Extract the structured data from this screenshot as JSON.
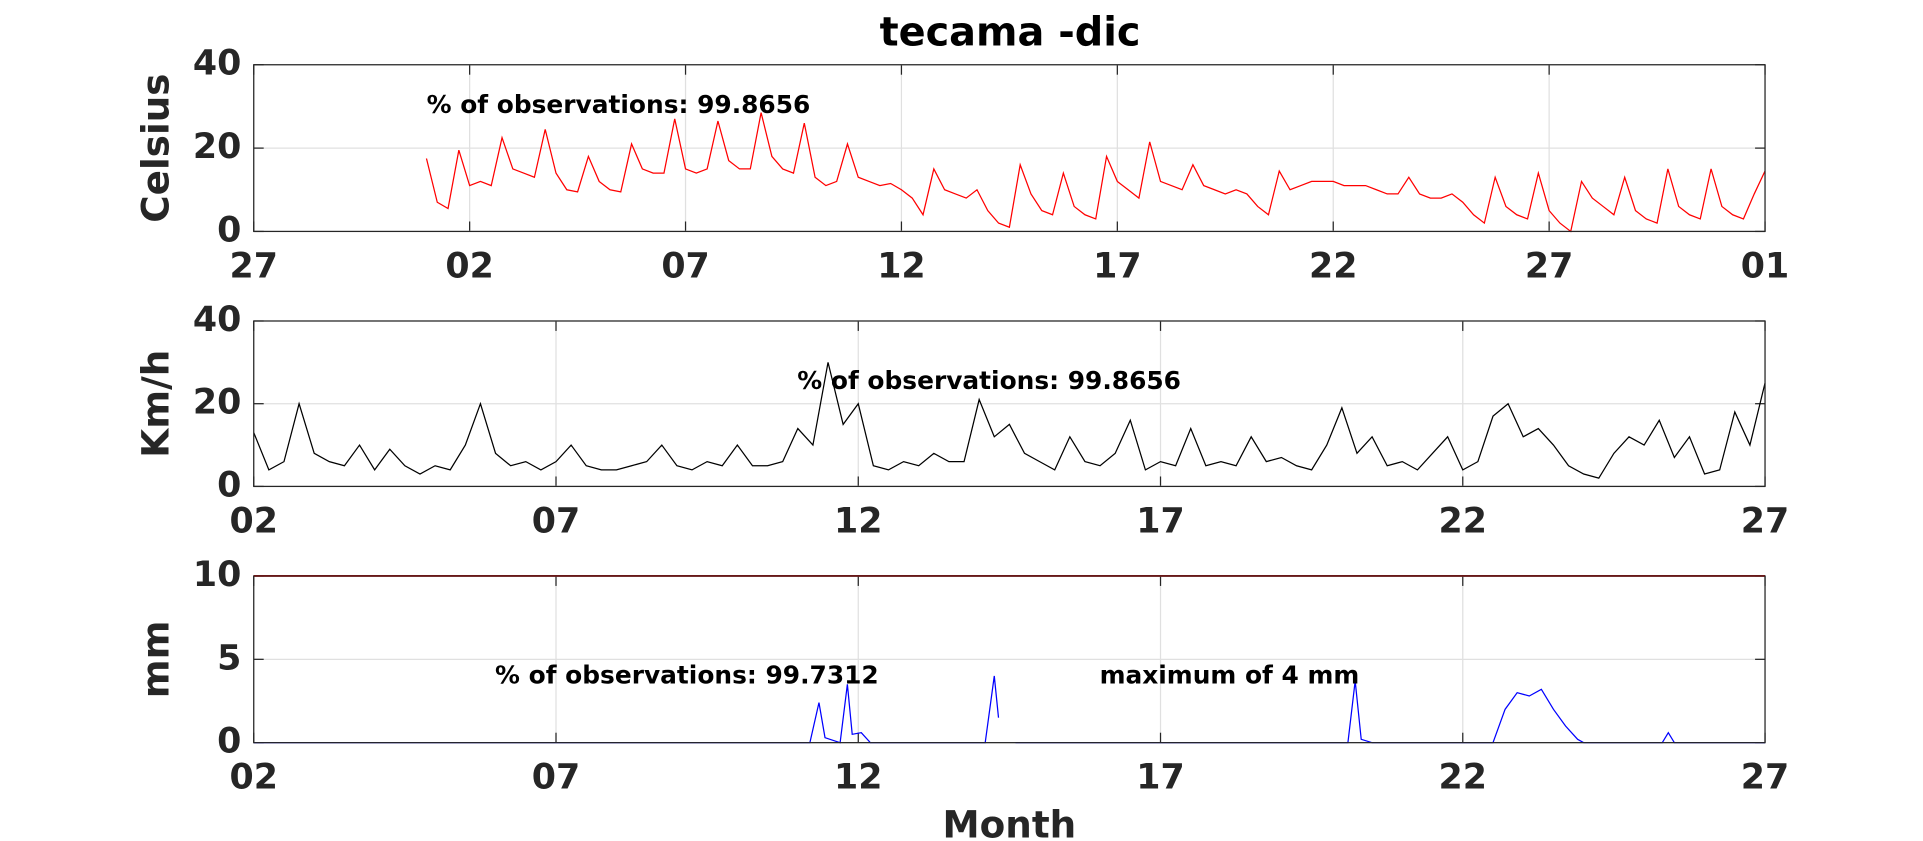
{
  "chart_data": [
    {
      "type": "line",
      "title": "tecama -dic",
      "ylabel": "Celsius",
      "annotations": [
        "% of observations: 99.8656"
      ],
      "xlim": [
        0,
        35
      ],
      "xticks": [
        {
          "value": 0,
          "label": "27"
        },
        {
          "value": 5,
          "label": "02"
        },
        {
          "value": 10,
          "label": "07"
        },
        {
          "value": 15,
          "label": "12"
        },
        {
          "value": 20,
          "label": "17"
        },
        {
          "value": 25,
          "label": "22"
        },
        {
          "value": 30,
          "label": "27"
        },
        {
          "value": 35,
          "label": "01"
        }
      ],
      "ylim": [
        0,
        40
      ],
      "yticks": [
        0,
        20,
        40
      ],
      "grid": true,
      "x": [
        4,
        4.25,
        4.5,
        4.75,
        5,
        5.25,
        5.5,
        5.75,
        6,
        6.25,
        6.5,
        6.75,
        7,
        7.25,
        7.5,
        7.75,
        8,
        8.25,
        8.5,
        8.75,
        9,
        9.25,
        9.5,
        9.75,
        10,
        10.25,
        10.5,
        10.75,
        11,
        11.25,
        11.5,
        11.75,
        12,
        12.25,
        12.5,
        12.75,
        13,
        13.25,
        13.5,
        13.75,
        14,
        14.25,
        14.5,
        14.75,
        15,
        15.25,
        15.5,
        15.75,
        16,
        16.25,
        16.5,
        16.75,
        17,
        17.25,
        17.5,
        17.75,
        18,
        18.25,
        18.5,
        18.75,
        19,
        19.25,
        19.5,
        19.75,
        20,
        20.25,
        20.5,
        20.75,
        21,
        21.25,
        21.5,
        21.75,
        22,
        22.25,
        22.5,
        22.75,
        23,
        23.25,
        23.5,
        23.75,
        24,
        24.25,
        24.5,
        24.75,
        25,
        25.25,
        25.5,
        25.75,
        26,
        26.25,
        26.5,
        26.75,
        27,
        27.25,
        27.5,
        27.75,
        28,
        28.25,
        28.5,
        28.75,
        29,
        29.25,
        29.5,
        29.75,
        30,
        30.25,
        30.5,
        30.75,
        31,
        31.25,
        31.5,
        31.75,
        32,
        32.25,
        32.5,
        32.75,
        33,
        33.25,
        33.5,
        33.75,
        34,
        34.25,
        34.5,
        34.75,
        35
      ],
      "series": [
        {
          "color": "#ff0000",
          "values": [
            17.5,
            7,
            5.5,
            19.5,
            11,
            12,
            11,
            22.5,
            15,
            14,
            13,
            24.5,
            14,
            10,
            9.5,
            18,
            12,
            10,
            9.5,
            21,
            15,
            14,
            14,
            27,
            15,
            14,
            15,
            26.5,
            17,
            15,
            15,
            28.5,
            18,
            15,
            14,
            26,
            13,
            11,
            12,
            21,
            13,
            12,
            11,
            11.5,
            10,
            8,
            4,
            15,
            10,
            9,
            8,
            10,
            5,
            2,
            1,
            16,
            9,
            5,
            4,
            14,
            6,
            4,
            3,
            18,
            12,
            10,
            8,
            21.5,
            12,
            11,
            10,
            16,
            11,
            10,
            9,
            10,
            9,
            6,
            4,
            14.5,
            10,
            11,
            12,
            12,
            12,
            11,
            11,
            11,
            10,
            9,
            9,
            13,
            9,
            8,
            8,
            9,
            7,
            4,
            2,
            13,
            6,
            4,
            3,
            14,
            5,
            2,
            0,
            12,
            8,
            6,
            4,
            13,
            5,
            3,
            2,
            15,
            6,
            4,
            3,
            15,
            6,
            4,
            3,
            9,
            14.5
          ]
        }
      ]
    },
    {
      "type": "line",
      "ylabel": "Km/h",
      "annotations": [
        "% of observations: 99.8656"
      ],
      "xlim": [
        0,
        25
      ],
      "xticks": [
        {
          "value": 0,
          "label": "02"
        },
        {
          "value": 5,
          "label": "07"
        },
        {
          "value": 10,
          "label": "12"
        },
        {
          "value": 15,
          "label": "17"
        },
        {
          "value": 20,
          "label": "22"
        },
        {
          "value": 25,
          "label": "27"
        }
      ],
      "ylim": [
        0,
        40
      ],
      "yticks": [
        0,
        20,
        40
      ],
      "grid": true,
      "x": [
        0,
        0.25,
        0.5,
        0.75,
        1,
        1.25,
        1.5,
        1.75,
        2,
        2.25,
        2.5,
        2.75,
        3,
        3.25,
        3.5,
        3.75,
        4,
        4.25,
        4.5,
        4.75,
        5,
        5.25,
        5.5,
        5.75,
        6,
        6.25,
        6.5,
        6.75,
        7,
        7.25,
        7.5,
        7.75,
        8,
        8.25,
        8.5,
        8.75,
        9,
        9.25,
        9.5,
        9.75,
        10,
        10.25,
        10.5,
        10.75,
        11,
        11.25,
        11.5,
        11.75,
        12,
        12.25,
        12.5,
        12.75,
        13,
        13.25,
        13.5,
        13.75,
        14,
        14.25,
        14.5,
        14.75,
        15,
        15.25,
        15.5,
        15.75,
        16,
        16.25,
        16.5,
        16.75,
        17,
        17.25,
        17.5,
        17.75,
        18,
        18.25,
        18.5,
        18.75,
        19,
        19.25,
        19.5,
        19.75,
        20,
        20.25,
        20.5,
        20.75,
        21,
        21.25,
        21.5,
        21.75,
        22,
        22.25,
        22.5,
        22.75,
        23,
        23.25,
        23.5,
        23.75,
        24,
        24.25,
        24.5,
        24.75,
        25
      ],
      "series": [
        {
          "color": "#000000",
          "values": [
            13,
            4,
            6,
            20,
            8,
            6,
            5,
            10,
            4,
            9,
            5,
            3,
            5,
            4,
            10,
            20,
            8,
            5,
            6,
            4,
            6,
            10,
            5,
            4,
            4,
            5,
            6,
            10,
            5,
            4,
            6,
            5,
            10,
            5,
            5,
            6,
            14,
            10,
            30,
            15,
            20,
            5,
            4,
            6,
            5,
            8,
            6,
            6,
            21,
            12,
            15,
            8,
            6,
            4,
            12,
            6,
            5,
            8,
            16,
            4,
            6,
            5,
            14,
            5,
            6,
            5,
            12,
            6,
            7,
            5,
            4,
            10,
            19,
            8,
            12,
            5,
            6,
            4,
            8,
            12,
            4,
            6,
            17,
            20,
            12,
            14,
            10,
            5,
            3,
            2,
            8,
            12,
            10,
            16,
            7,
            12,
            3,
            4,
            18,
            10,
            25
          ]
        }
      ]
    },
    {
      "type": "line",
      "ylabel": "mm",
      "xlabel": "Month",
      "annotations": [
        "% of observations: 99.7312",
        "maximum of 4 mm"
      ],
      "xlim": [
        0,
        25
      ],
      "xticks": [
        {
          "value": 0,
          "label": "02"
        },
        {
          "value": 5,
          "label": "07"
        },
        {
          "value": 10,
          "label": "12"
        },
        {
          "value": 15,
          "label": "17"
        },
        {
          "value": 20,
          "label": "22"
        },
        {
          "value": 25,
          "label": "27"
        }
      ],
      "ylim": [
        0,
        10
      ],
      "yticks": [
        0,
        5,
        10
      ],
      "grid": true,
      "hlines": [
        {
          "value": 10,
          "color": "#e00000"
        }
      ],
      "x": [
        0,
        9.2,
        9.35,
        9.45,
        9.7,
        9.82,
        9.9,
        10.05,
        10.2,
        12.1,
        12.25,
        12.32,
        12.45,
        12.6,
        18.1,
        18.22,
        18.32,
        18.5,
        20.5,
        20.7,
        20.9,
        21.1,
        21.3,
        21.5,
        21.7,
        21.9,
        22,
        23.3,
        23.4,
        23.5,
        25
      ],
      "series": [
        {
          "color": "#0000ff",
          "values": [
            0,
            0,
            2.4,
            0.3,
            0,
            3.5,
            0.5,
            0.6,
            0,
            0,
            4,
            1.5,
            null,
            0,
            0,
            3.7,
            0.2,
            0,
            0,
            2,
            3,
            2.8,
            3.2,
            2,
            1,
            0.2,
            0,
            0,
            0.6,
            0,
            0
          ]
        }
      ]
    }
  ]
}
